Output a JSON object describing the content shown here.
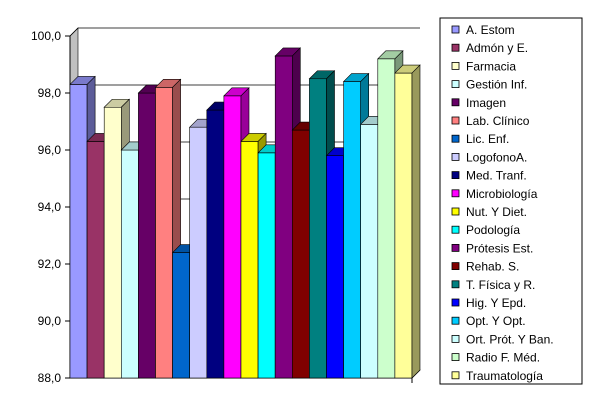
{
  "chart_data": {
    "type": "bar",
    "title": "",
    "xlabel": "",
    "ylabel": "",
    "ylim": [
      88,
      100
    ],
    "yticks": [
      "88,0",
      "90,0",
      "92,0",
      "94,0",
      "96,0",
      "98,0",
      "100,0"
    ],
    "grid": true,
    "legend_position": "right",
    "three_d": true,
    "categories": [
      "A. Estom",
      "Admón y E.",
      "Farmacia",
      "Gestión Inf.",
      "Imagen",
      "Lab. Clínico",
      "Lic. Enf.",
      "LogofonoA.",
      "Med. Tranf.",
      "Microbiología",
      "Nut. Y Diet.",
      "Podología",
      "Prótesis Est.",
      "Rehab. S.",
      "T. Física y R.",
      "Hig. Y Epd.",
      "Opt. Y Opt.",
      "Ort. Prót. Y Ban.",
      "Radio F. Méd.",
      "Traumatología"
    ],
    "values": [
      98.3,
      96.3,
      97.5,
      96.0,
      98.0,
      98.2,
      92.4,
      96.8,
      97.4,
      97.9,
      96.3,
      95.9,
      99.3,
      96.7,
      98.5,
      95.8,
      98.4,
      96.9,
      99.2,
      98.7
    ],
    "colors": [
      "#9999FF",
      "#993366",
      "#FFFFCC",
      "#CCFFFF",
      "#660066",
      "#FF8080",
      "#0066CC",
      "#CCCCFF",
      "#000080",
      "#FF00FF",
      "#FFFF00",
      "#00FFFF",
      "#800080",
      "#800000",
      "#008080",
      "#0000FF",
      "#00CCFF",
      "#CCFFFF",
      "#CCFFCC",
      "#FFFF99"
    ]
  }
}
